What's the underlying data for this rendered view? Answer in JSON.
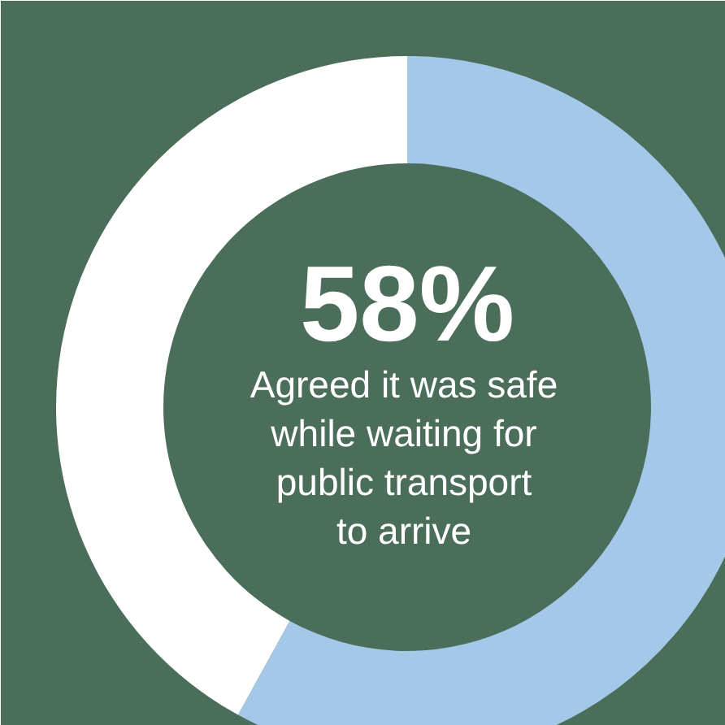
{
  "chart_data": {
    "type": "donut",
    "categories": [
      null,
      null
    ],
    "values": [
      58,
      42
    ],
    "colors": [
      "#a4c8e8",
      "#ffffff"
    ],
    "value_labels": [
      "58%",
      null
    ],
    "annotations": [
      "Agreed it was safe while waiting for public transport to arrive"
    ]
  }
}
